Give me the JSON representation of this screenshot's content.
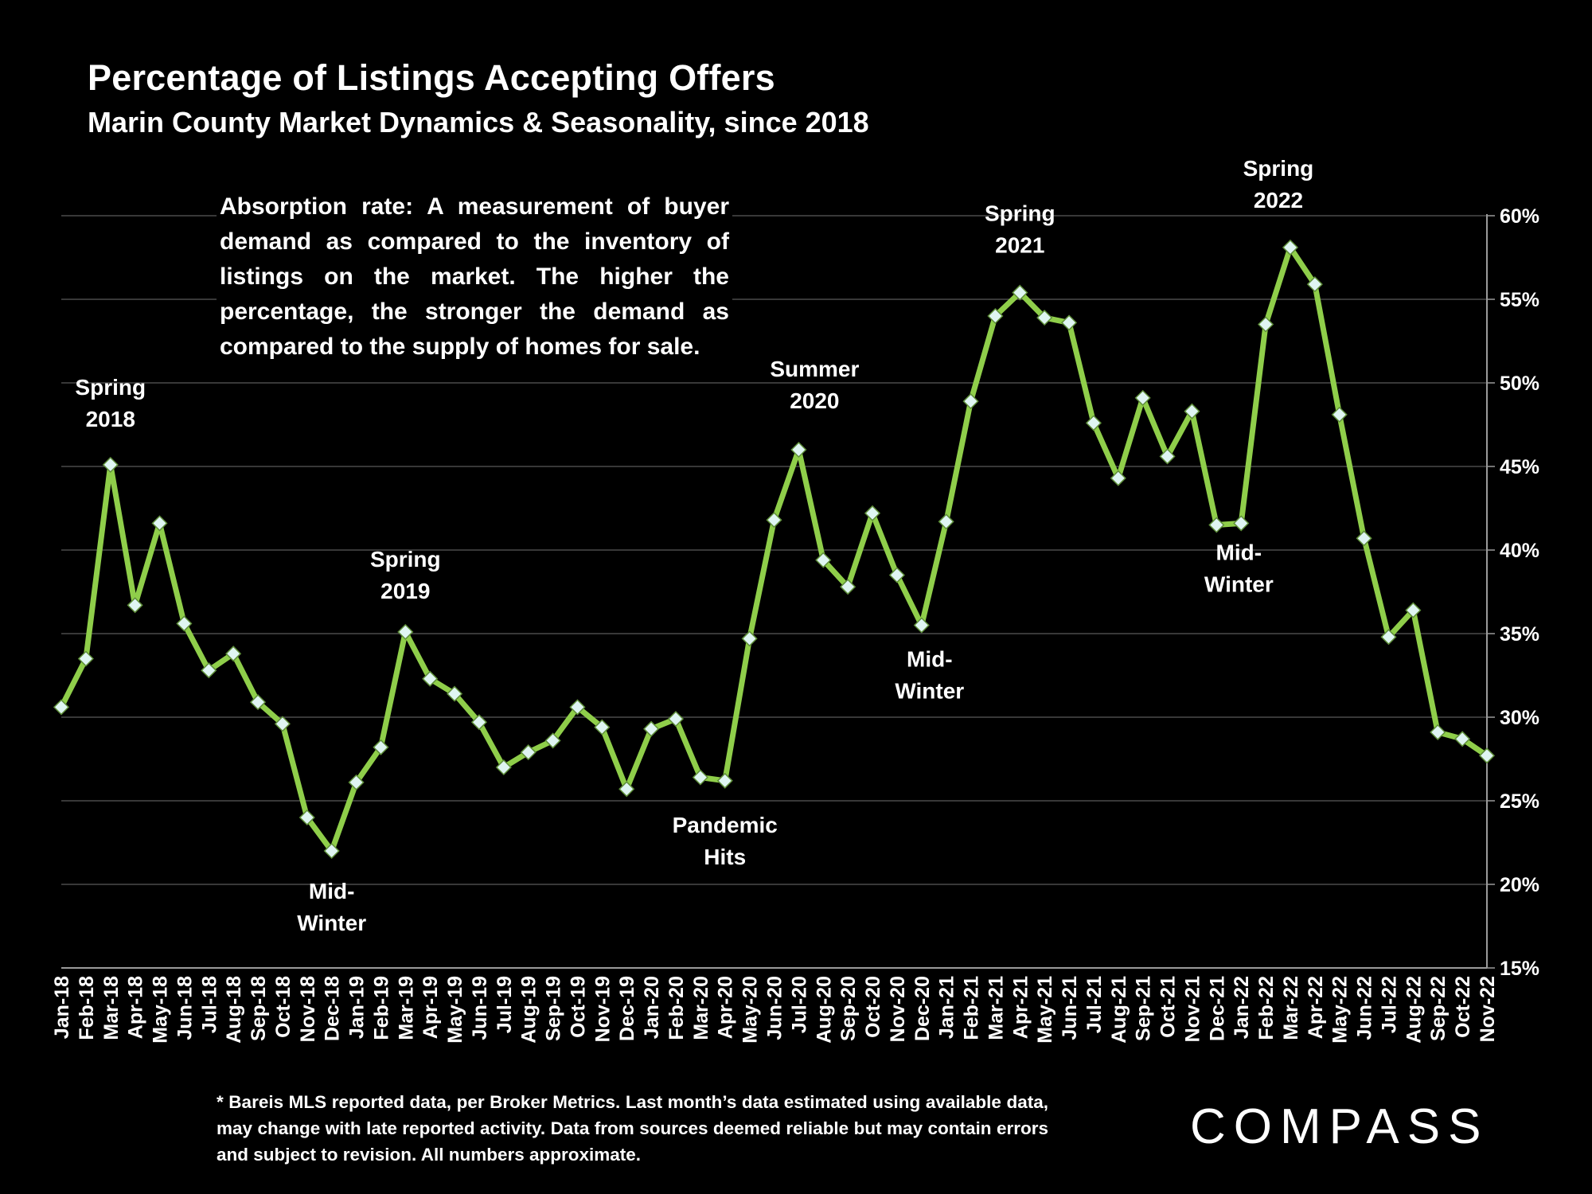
{
  "header": {
    "title": "Percentage of Listings Accepting Offers",
    "subtitle": "Marin County Market Dynamics & Seasonality, since 2018"
  },
  "callout": "Absorption rate: A measurement of buyer demand as compared to the inventory of listings on the market. The higher the percentage, the stronger the demand as compared to the supply of homes for sale.",
  "footnote": "* Bareis MLS reported data, per Broker Metrics. Last month’s data estimated using available data, may change with late reported activity. Data from sources deemed reliable but may contain errors and subject to revision. All numbers approximate.",
  "logo": "COMPASS",
  "colors": {
    "line": "#8fce4a",
    "marker": "#dff5f2",
    "grid": "#4a4a4a",
    "background": "#000000"
  },
  "chart_data": {
    "type": "line",
    "title": "Percentage of Listings Accepting Offers",
    "xlabel": "",
    "ylabel": "",
    "ylim": [
      15,
      60
    ],
    "yticks": [
      15,
      20,
      25,
      30,
      35,
      40,
      45,
      50,
      55,
      60
    ],
    "ytick_labels": [
      "15%",
      "20%",
      "25%",
      "30%",
      "35%",
      "40%",
      "45%",
      "50%",
      "55%",
      "60%"
    ],
    "y_axis_position": "right",
    "grid": true,
    "categories": [
      "Jan-18",
      "Feb-18",
      "Mar-18",
      "Apr-18",
      "May-18",
      "Jun-18",
      "Jul-18",
      "Aug-18",
      "Sep-18",
      "Oct-18",
      "Nov-18",
      "Dec-18",
      "Jan-19",
      "Feb-19",
      "Mar-19",
      "Apr-19",
      "May-19",
      "Jun-19",
      "Jul-19",
      "Aug-19",
      "Sep-19",
      "Oct-19",
      "Nov-19",
      "Dec-19",
      "Jan-20",
      "Feb-20",
      "Mar-20",
      "Apr-20",
      "May-20",
      "Jun-20",
      "Jul-20",
      "Aug-20",
      "Sep-20",
      "Oct-20",
      "Nov-20",
      "Dec-20",
      "Jan-21",
      "Feb-21",
      "Mar-21",
      "Apr-21",
      "May-21",
      "Jun-21",
      "Jul-21",
      "Aug-21",
      "Sep-21",
      "Oct-21",
      "Nov-21",
      "Dec-21",
      "Jan-22",
      "Feb-22",
      "Mar-22",
      "Apr-22",
      "May-22",
      "Jun-22",
      "Jul-22",
      "Aug-22",
      "Sep-22",
      "Oct-22",
      "Nov-22"
    ],
    "series": [
      {
        "name": "Percentage of Listings Accepting Offers",
        "values": [
          30.6,
          33.5,
          45.1,
          36.7,
          41.6,
          35.6,
          32.8,
          33.8,
          30.9,
          29.6,
          24.0,
          22.0,
          26.1,
          28.2,
          35.1,
          32.3,
          31.4,
          29.7,
          27.0,
          27.9,
          28.6,
          30.6,
          29.4,
          25.7,
          29.3,
          29.9,
          26.4,
          26.2,
          34.7,
          41.8,
          46.0,
          39.4,
          37.8,
          42.2,
          38.5,
          35.5,
          41.7,
          48.9,
          54.0,
          55.4,
          53.9,
          53.6,
          47.6,
          44.3,
          49.1,
          45.6,
          48.3,
          41.5,
          41.6,
          53.5,
          58.1,
          55.9,
          48.1,
          40.7,
          34.8,
          36.4,
          29.1,
          28.7,
          27.7
        ]
      }
    ],
    "annotations": [
      {
        "text": [
          "Spring",
          "2018"
        ],
        "index": 2,
        "value": 45.1
      },
      {
        "text": [
          "Mid-",
          "Winter"
        ],
        "index": 11,
        "value": 22.0
      },
      {
        "text": [
          "Spring",
          "2019"
        ],
        "index": 14,
        "value": 35.1
      },
      {
        "text": [
          "Pandemic",
          "Hits"
        ],
        "index": 27,
        "value": 26.2
      },
      {
        "text": [
          "Summer",
          "2020"
        ],
        "index": 30,
        "value": 46.0
      },
      {
        "text": [
          "Mid-",
          "Winter"
        ],
        "index": 35,
        "value": 35.5
      },
      {
        "text": [
          "Spring",
          "2021"
        ],
        "index": 39,
        "value": 55.4
      },
      {
        "text": [
          "Mid-",
          "Winter"
        ],
        "index": 47,
        "value": 41.5
      },
      {
        "text": [
          "Spring",
          "2022"
        ],
        "index": 50,
        "value": 58.1
      }
    ]
  }
}
